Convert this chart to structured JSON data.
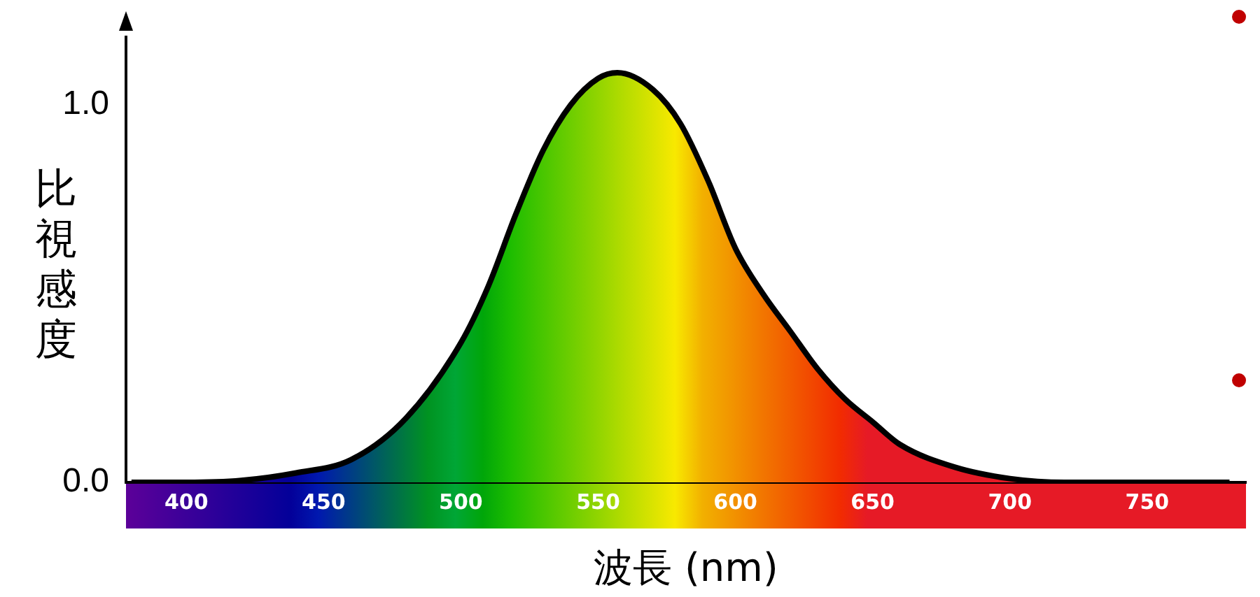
{
  "chart_data": {
    "type": "area",
    "xlabel": "波長 (nm)",
    "ylabel": "比視感度",
    "x": [
      380,
      400,
      420,
      440,
      460,
      480,
      500,
      510,
      520,
      530,
      540,
      550,
      557,
      570,
      580,
      590,
      600,
      610,
      620,
      630,
      640,
      650,
      660,
      680,
      700,
      720,
      750,
      780
    ],
    "series": [
      {
        "color": "#000000",
        "values": [
          0,
          0,
          0.005,
          0.025,
          0.06,
          0.17,
          0.37,
          0.52,
          0.71,
          0.88,
          1.0,
          1.07,
          1.085,
          1.04,
          0.95,
          0.8,
          0.62,
          0.5,
          0.4,
          0.3,
          0.22,
          0.16,
          0.1,
          0.04,
          0.01,
          0,
          0,
          0
        ]
      }
    ],
    "xlim": [
      378,
      786
    ],
    "xticks": [
      400,
      450,
      500,
      550,
      600,
      650,
      700,
      750
    ],
    "ylim": [
      0,
      1.18
    ],
    "yticks": [
      {
        "value": 0,
        "label": "0.0"
      },
      {
        "value": 1,
        "label": "1.0"
      }
    ],
    "grid": false,
    "legend": false
  }
}
